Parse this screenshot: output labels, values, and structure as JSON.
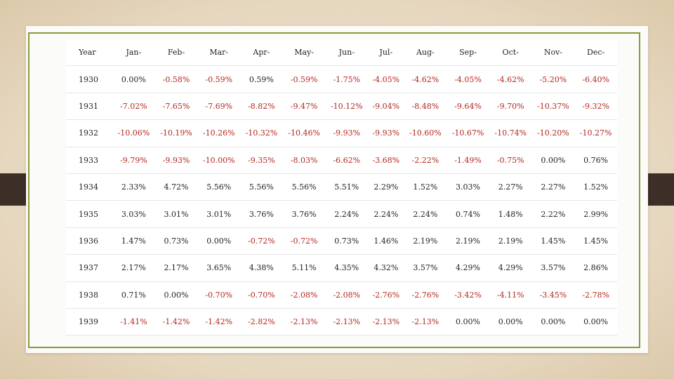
{
  "table": {
    "header": [
      "Year",
      "Jan-",
      "Feb-",
      "Mar-",
      "Apr-",
      "May-",
      "Jun-",
      "Jul-",
      "Aug-",
      "Sep-",
      "Oct-",
      "Nov-",
      "Dec-"
    ],
    "rows": [
      [
        "1930",
        "0.00%",
        "-0.58%",
        "-0.59%",
        "0.59%",
        "-0.59%",
        "-1.75%",
        "-4.05%",
        "-4.62%",
        "-4.05%",
        "-4.62%",
        "-5.20%",
        "-6.40%"
      ],
      [
        "1931",
        "-7.02%",
        "-7.65%",
        "-7.69%",
        "-8.82%",
        "-9.47%",
        "-10.12%",
        "-9.04%",
        "-8.48%",
        "-9.64%",
        "-9.70%",
        "-10.37%",
        "-9.32%"
      ],
      [
        "1932",
        "-10.06%",
        "-10.19%",
        "-10.26%",
        "-10.32%",
        "-10.46%",
        "-9.93%",
        "-9.93%",
        "-10.60%",
        "-10.67%",
        "-10.74%",
        "-10.20%",
        "-10.27%"
      ],
      [
        "1933",
        "-9.79%",
        "-9.93%",
        "-10.00%",
        "-9.35%",
        "-8.03%",
        "-6.62%",
        "-3.68%",
        "-2.22%",
        "-1.49%",
        "-0.75%",
        "0.00%",
        "0.76%"
      ],
      [
        "1934",
        "2.33%",
        "4.72%",
        "5.56%",
        "5.56%",
        "5.56%",
        "5.51%",
        "2.29%",
        "1.52%",
        "3.03%",
        "2.27%",
        "2.27%",
        "1.52%"
      ],
      [
        "1935",
        "3.03%",
        "3.01%",
        "3.01%",
        "3.76%",
        "3.76%",
        "2.24%",
        "2.24%",
        "2.24%",
        "0.74%",
        "1.48%",
        "2.22%",
        "2.99%"
      ],
      [
        "1936",
        "1.47%",
        "0.73%",
        "0.00%",
        "-0.72%",
        "-0.72%",
        "0.73%",
        "1.46%",
        "2.19%",
        "2.19%",
        "2.19%",
        "1.45%",
        "1.45%"
      ],
      [
        "1937",
        "2.17%",
        "2.17%",
        "3.65%",
        "4.38%",
        "5.11%",
        "4.35%",
        "4.32%",
        "3.57%",
        "4.29%",
        "4.29%",
        "3.57%",
        "2.86%"
      ],
      [
        "1938",
        "0.71%",
        "0.00%",
        "-0.70%",
        "-0.70%",
        "-2.08%",
        "-2.08%",
        "-2.76%",
        "-2.76%",
        "-3.42%",
        "-4.11%",
        "-3.45%",
        "-2.78%"
      ],
      [
        "1939",
        "-1.41%",
        "-1.42%",
        "-1.42%",
        "-2.82%",
        "-2.13%",
        "-2.13%",
        "-2.13%",
        "-2.13%",
        "0.00%",
        "0.00%",
        "0.00%",
        "0.00%"
      ]
    ]
  },
  "colors": {
    "negative": "#b3261e",
    "frame": "#8a9a3a",
    "background": "#e6d7bf",
    "tabs": "#3b2f27"
  }
}
